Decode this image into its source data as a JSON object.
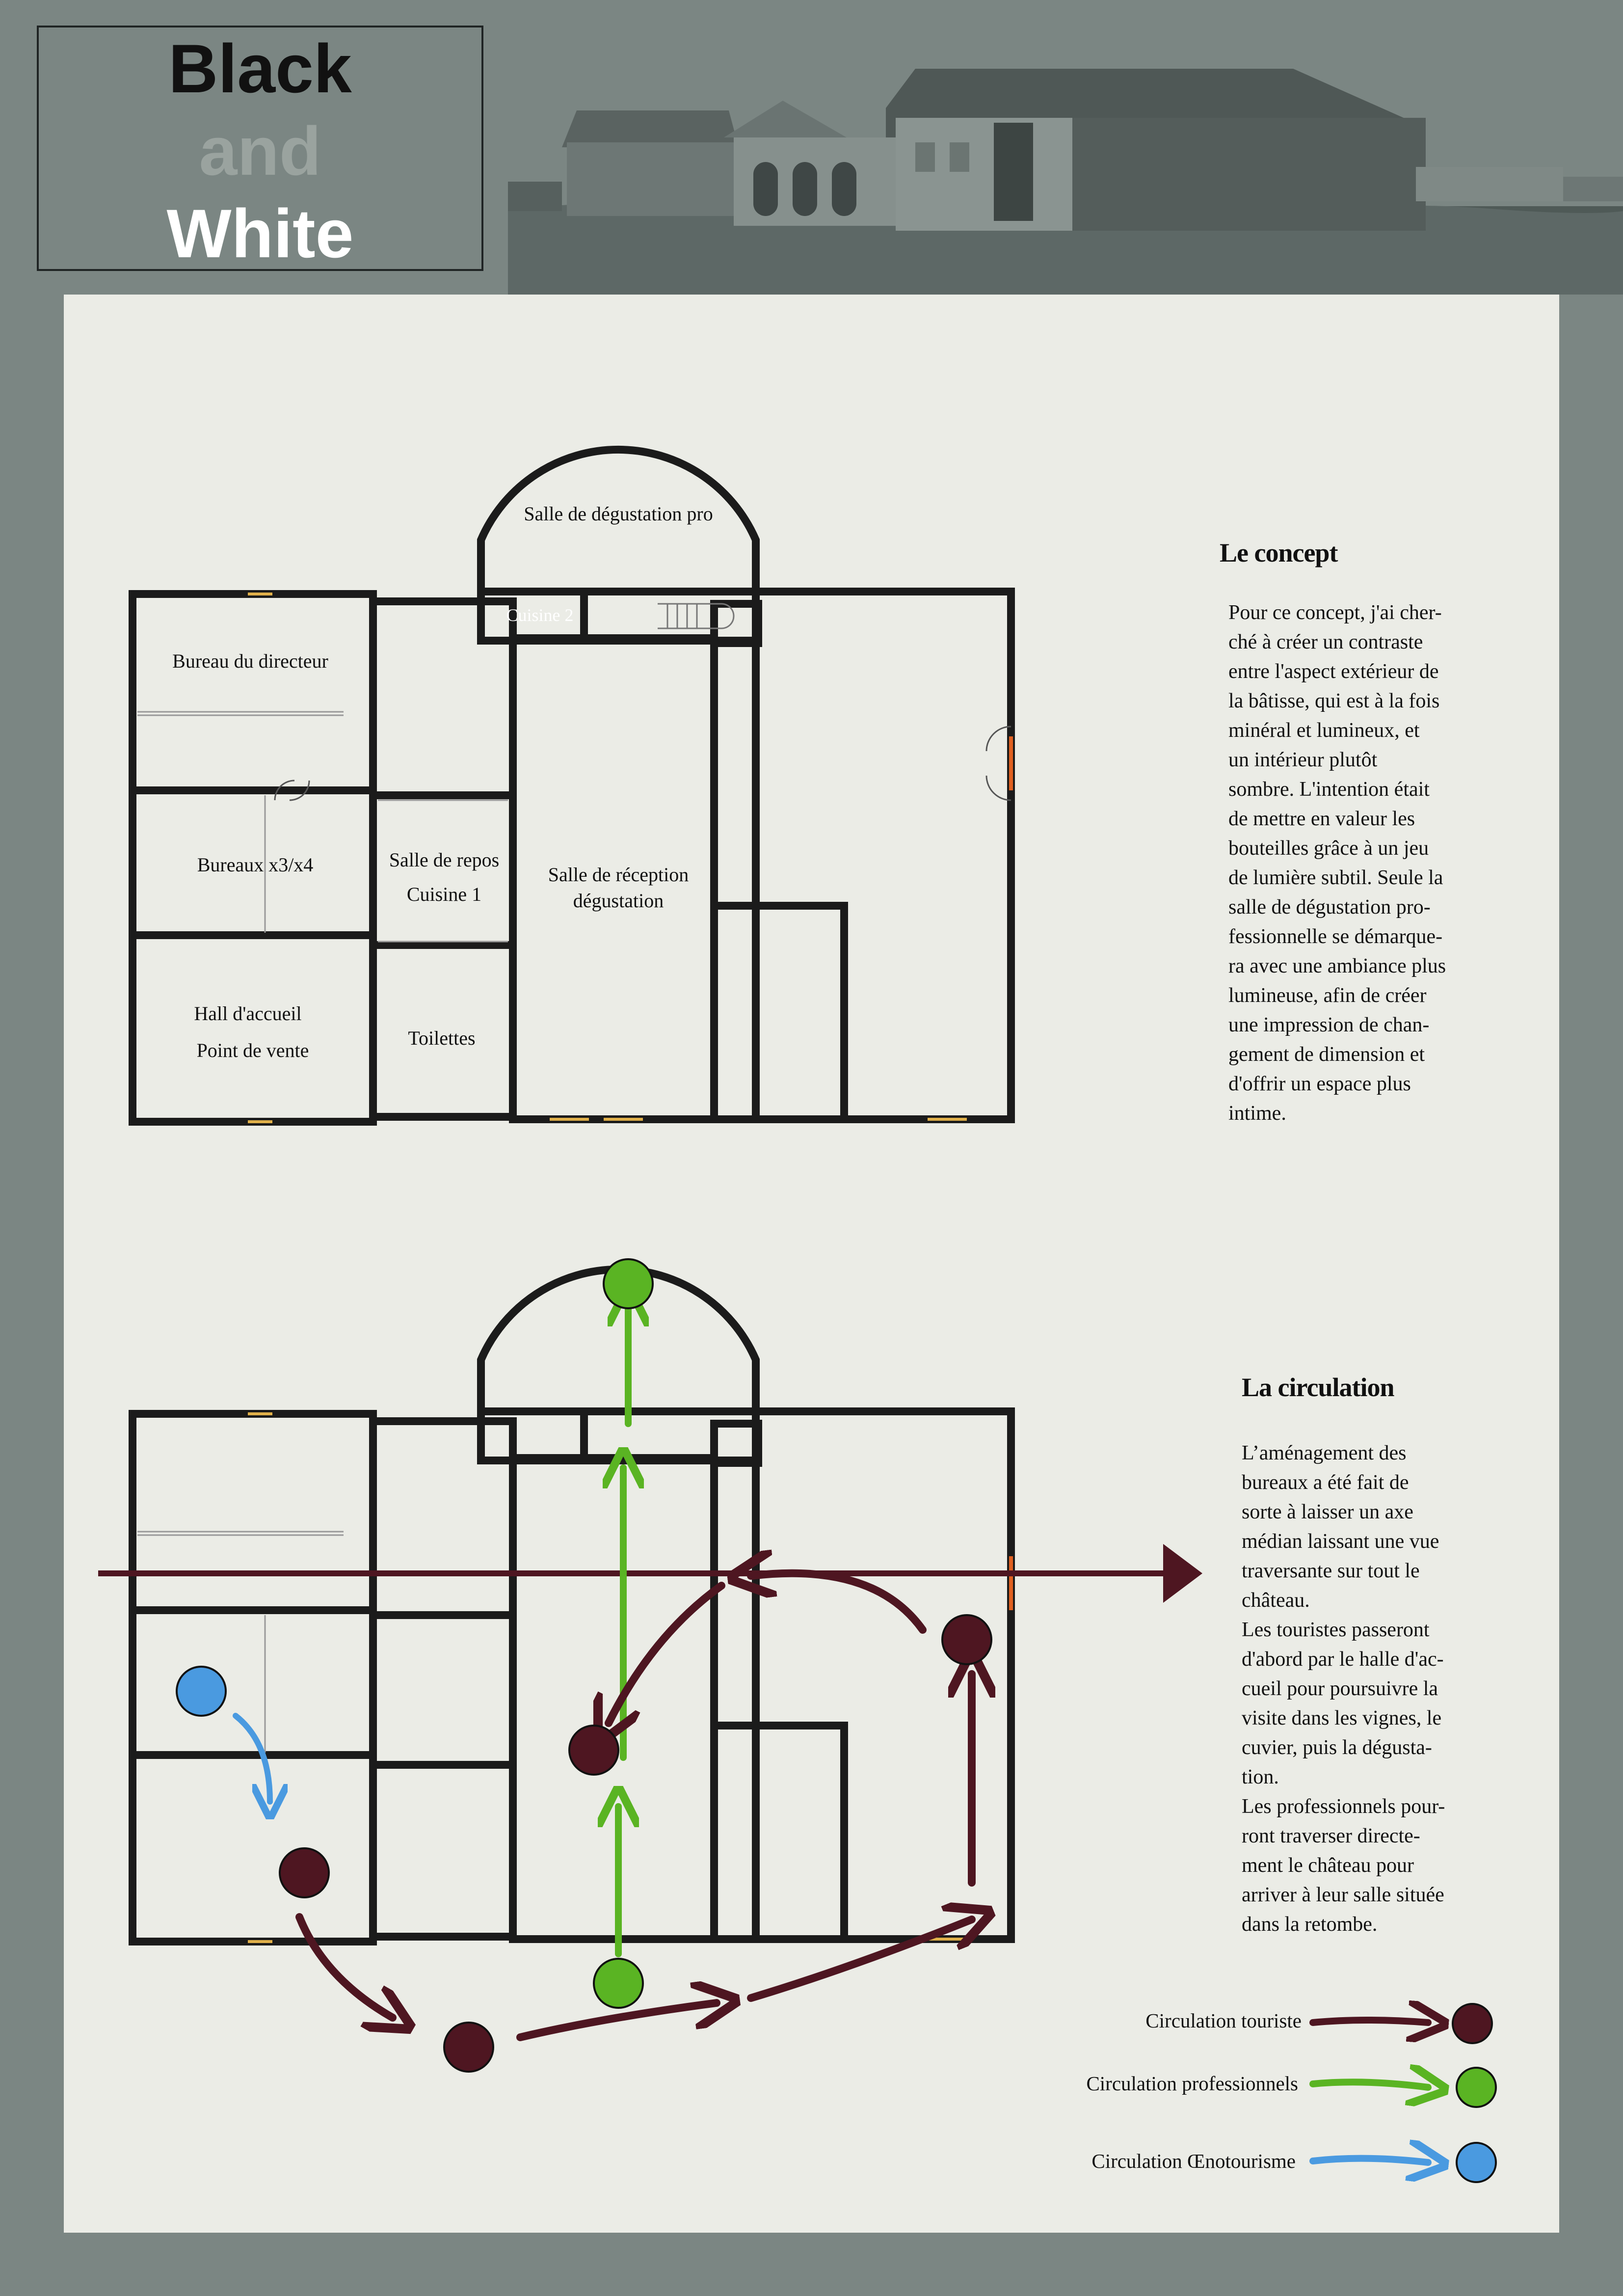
{
  "header": {
    "title_line1": "Black",
    "title_line2": "and",
    "title_line3": "White"
  },
  "plan_labels": {
    "salle_pro": "Salle de dégustation pro",
    "cuisine2": "Cuisine 2",
    "bureau_directeur": "Bureau du directeur",
    "bureaux": "Bureaux x3/x4",
    "salle_repos": "Salle de repos",
    "cuisine1": "Cuisine 1",
    "reception_line1": "Salle de réception",
    "reception_line2": "dégustation",
    "hall_line1": "Hall d'accueil",
    "hall_line2": "Point de vente",
    "toilettes": "Toilettes"
  },
  "concept": {
    "title": "Le concept",
    "text": "Pour ce concept, j'ai cher-\nché à créer un contraste\nentre l'aspect extérieur de\nla bâtisse, qui est à la fois\nminéral et lumineux, et\nun intérieur plutôt\nsombre. L'intention était\nde mettre en valeur les\nbouteilles grâce à un jeu\nde lumière subtil. Seule la\nsalle de dégustation pro-\nfessionnelle se démarque-\nra avec une ambiance plus\nlumineuse, afin de créer\nune impression de chan-\ngement de dimension et\nd'offrir un espace plus\nintime."
  },
  "circulation": {
    "title": "La circulation",
    "text": "L’aménagement des\nbureaux a été fait de\nsorte à laisser un axe\nmédian laissant une vue\ntraversante sur tout le\nchâteau.\nLes touristes passeront\nd'abord par le halle d'ac-\ncueil pour poursuivre la\nvisite dans les vignes, le\ncuvier, puis la dégusta-\ntion.\nLes professionnels pour-\nront traverser directe-\nment le château pour\narriver à leur salle située\ndans la retombe."
  },
  "legend": {
    "touriste": "Circulation touriste",
    "professionnels": "Circulation professionnels",
    "oenotourisme": "Circulation Œnotourisme"
  },
  "colors": {
    "touriste": "#4e1621",
    "professionnels": "#5ab423",
    "oenotourisme": "#4a9ae0",
    "wall": "#1b1b1b",
    "background": "#7b8683",
    "sheet": "#ebece6"
  }
}
